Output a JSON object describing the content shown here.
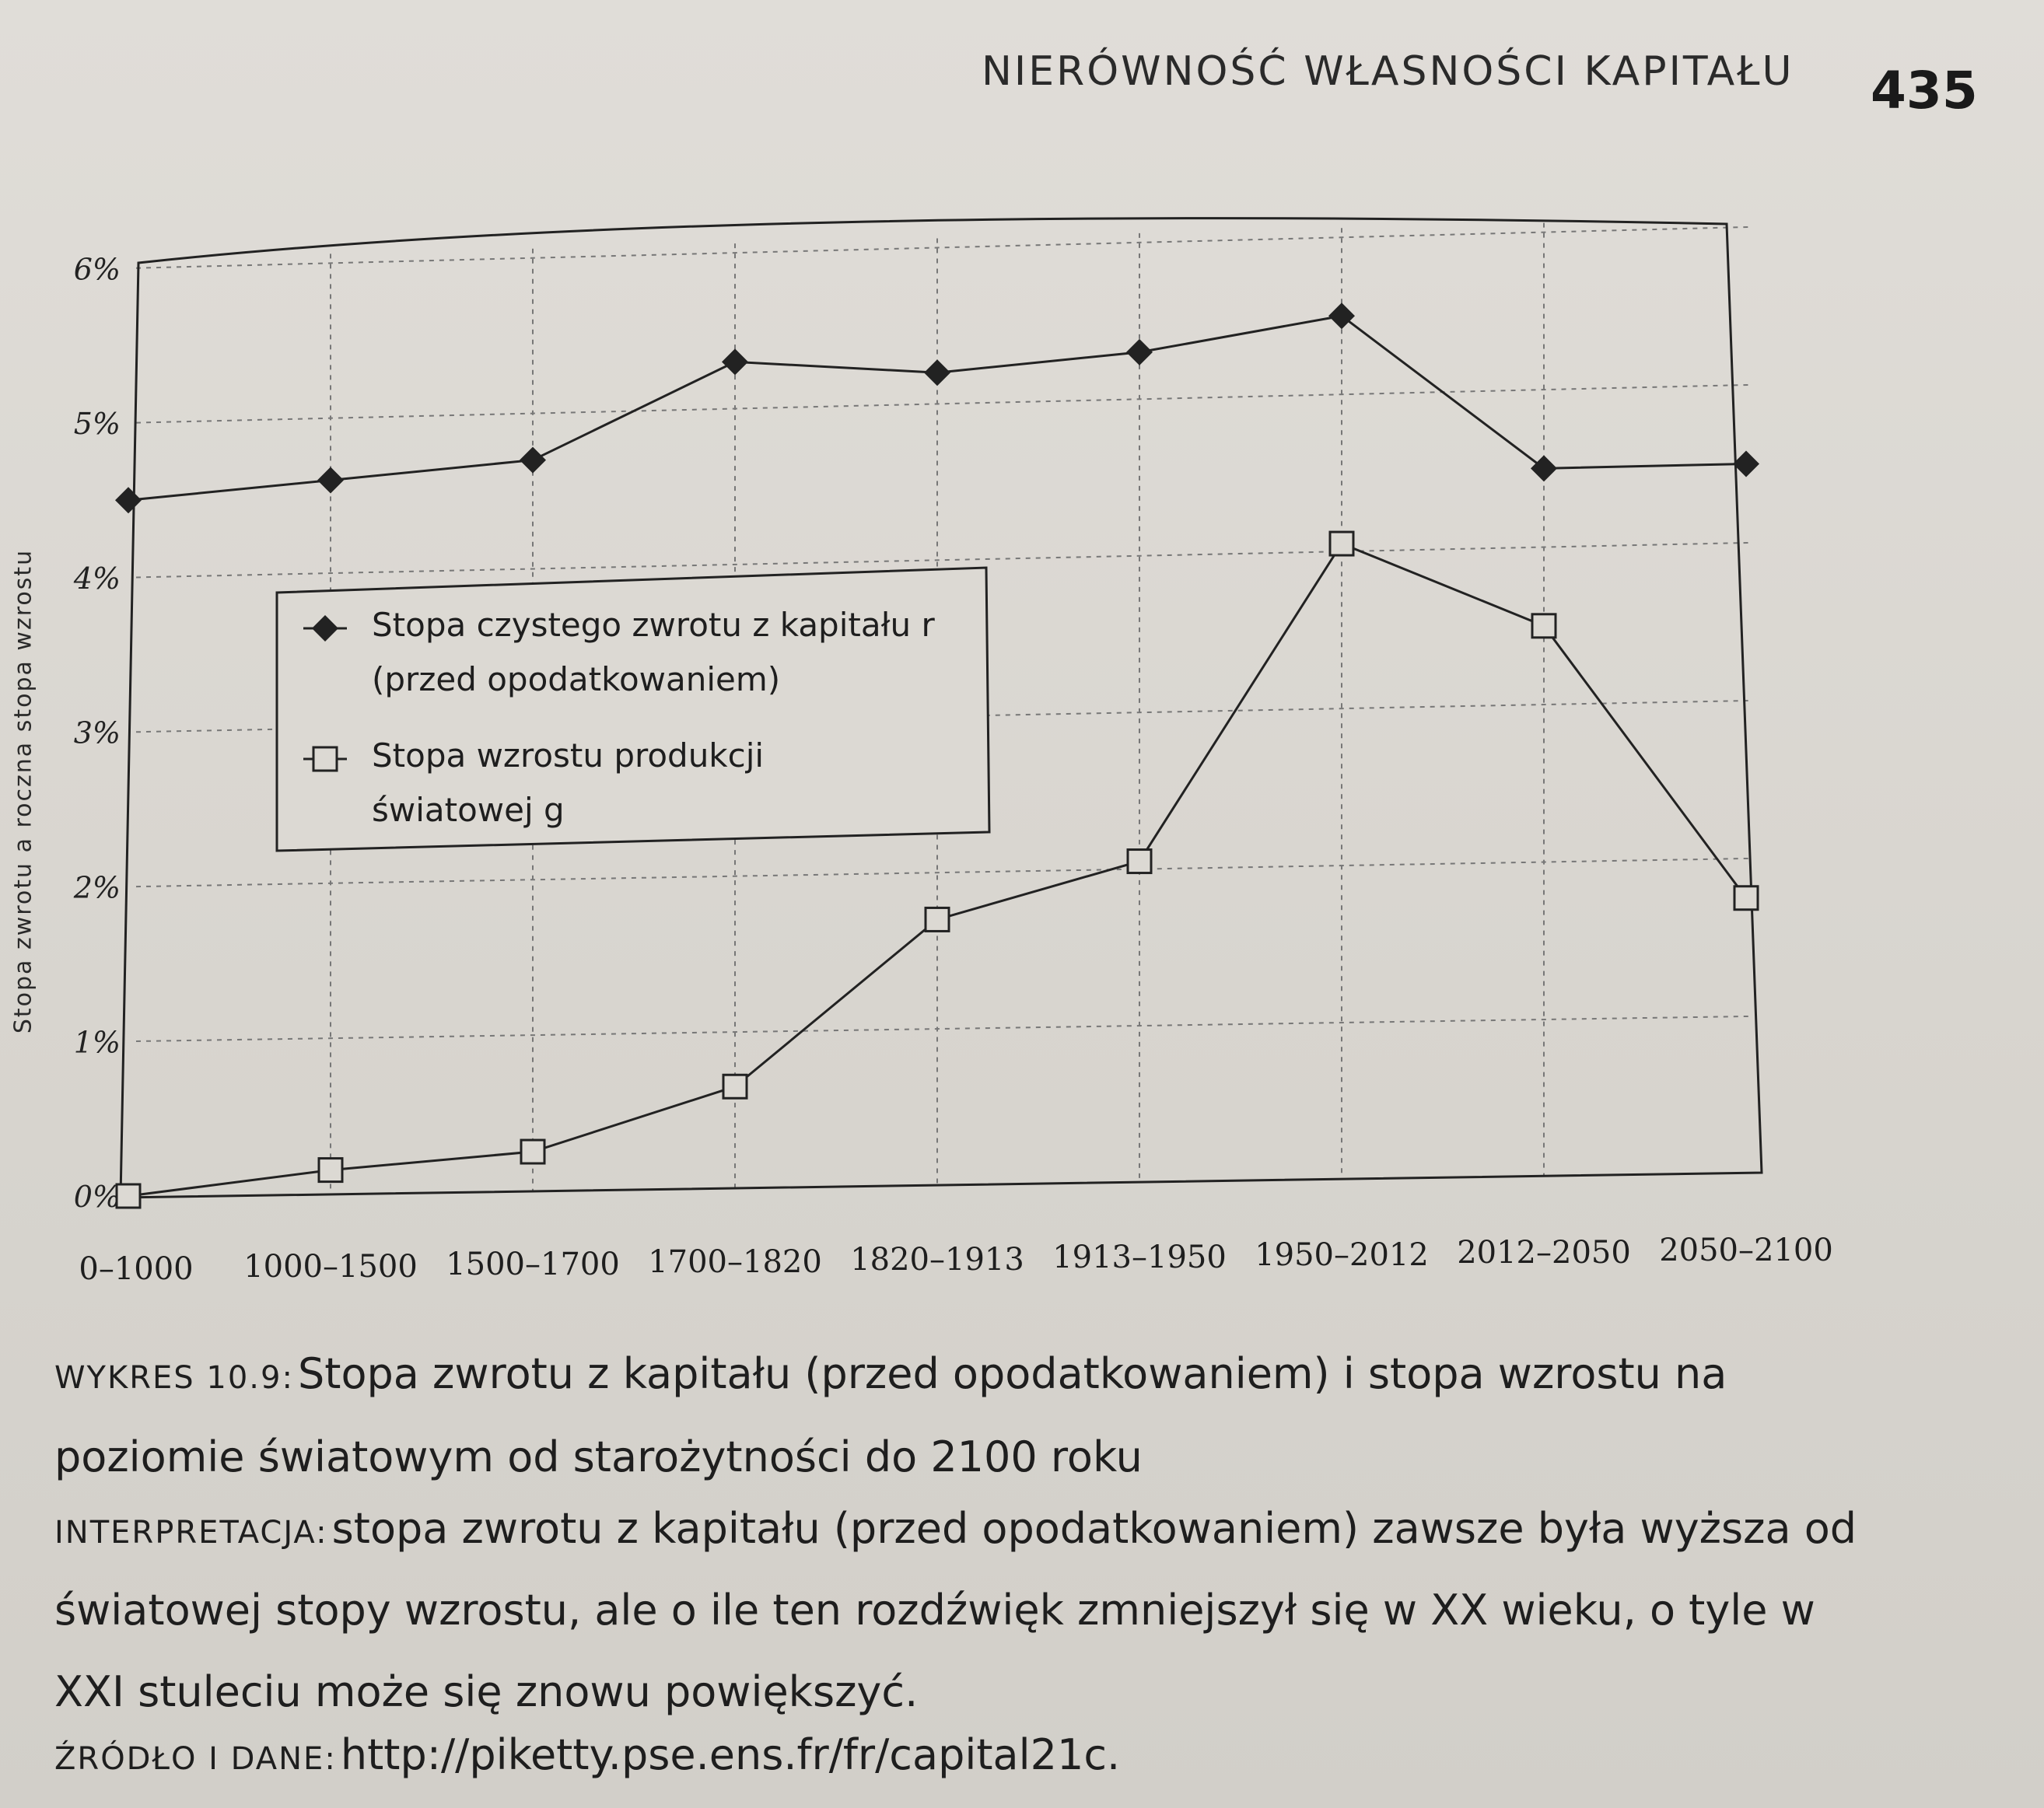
{
  "header": {
    "running_title": "NIERÓWNOŚĆ WŁASNOŚCI KAPITAŁU",
    "page_number": "435"
  },
  "chart_data": {
    "type": "line",
    "categories": [
      "0–1000",
      "1000–1500",
      "1500–1700",
      "1700–1820",
      "1820–1913",
      "1913–1950",
      "1950–2012",
      "2012–2050",
      "2050–2100"
    ],
    "series": [
      {
        "name": "Stopa czystego zwrotu z kapitału r (przed opodatkowaniem)",
        "marker": "filled-diamond",
        "values": [
          4.5,
          4.6,
          4.7,
          5.3,
          5.2,
          5.3,
          5.5,
          4.5,
          4.5
        ]
      },
      {
        "name": "Stopa wzrostu produkcji światowej g",
        "marker": "open-square",
        "values": [
          0.0,
          0.15,
          0.25,
          0.65,
          1.7,
          2.05,
          4.05,
          3.5,
          1.75
        ]
      }
    ],
    "legend_lines": [
      [
        "Stopa czystego zwrotu z kapitału r",
        "(przed opodatkowaniem)"
      ],
      [
        "Stopa wzrostu produkcji",
        "światowej g"
      ]
    ],
    "yticks": [
      "0%",
      "1%",
      "2%",
      "3%",
      "4%",
      "5%",
      "6%"
    ],
    "ylim": [
      0,
      6
    ],
    "ylabel": "Stopa zwrotu a roczna stopa wzrostu",
    "xlabel": "",
    "grid": true,
    "legend_position": "middle-left",
    "colors": {
      "line": "#222222",
      "grid": "#777777",
      "page": "#dcd9d3"
    }
  },
  "caption": {
    "figure_label": "WYKRES 10.9:",
    "figure_title": "Stopa zwrotu z kapitału (przed opodatkowaniem) i stopa wzrostu na poziomie światowym od starożytności do 2100 roku",
    "interpretation_label": "INTERPRETACJA:",
    "interpretation_text": "stopa zwrotu z kapitału (przed opodatkowaniem) zawsze była wyższa od światowej stopy wzrostu, ale o ile ten rozdźwięk zmniejszył się w XX wieku, o tyle w XXI stuleciu może się znowu powiększyć.",
    "source_label": "ŹRÓDŁO I DANE:",
    "source_text": "http://piketty.pse.ens.fr/fr/capital21c."
  }
}
